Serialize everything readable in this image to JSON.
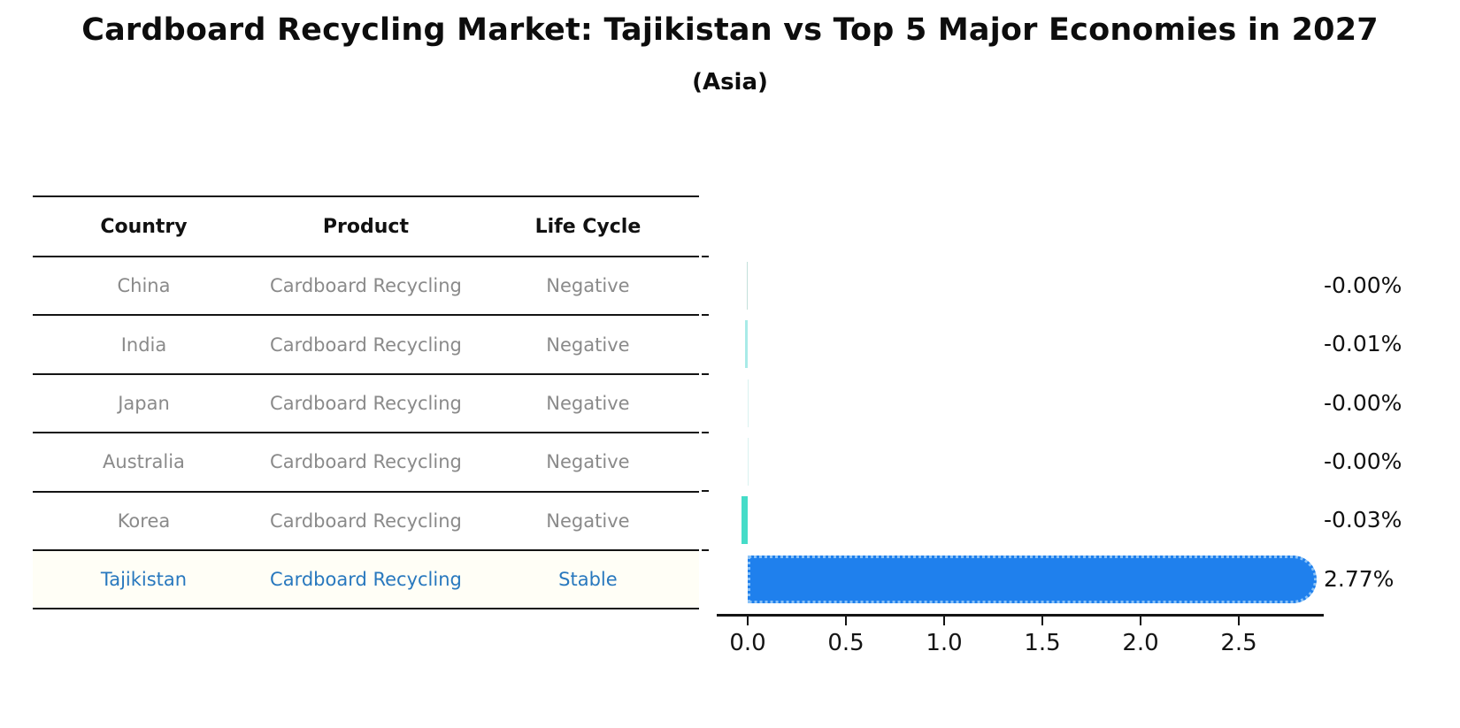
{
  "header": {
    "title": "Cardboard Recycling Market: Tajikistan vs Top 5 Major Economies in 2027",
    "subtitle": "(Asia)"
  },
  "table": {
    "columns": [
      "Country",
      "Product",
      "Life Cycle"
    ],
    "rows": [
      {
        "country": "China",
        "product": "Cardboard Recycling",
        "life_cycle": "Negative",
        "highlighted": false
      },
      {
        "country": "India",
        "product": "Cardboard Recycling",
        "life_cycle": "Negative",
        "highlighted": false
      },
      {
        "country": "Japan",
        "product": "Cardboard Recycling",
        "life_cycle": "Negative",
        "highlighted": false
      },
      {
        "country": "Australia",
        "product": "Cardboard Recycling",
        "life_cycle": "Negative",
        "highlighted": false
      },
      {
        "country": "Korea",
        "product": "Cardboard Recycling",
        "life_cycle": "Negative",
        "highlighted": false
      },
      {
        "country": "Tajikistan",
        "product": "Cardboard Recycling",
        "life_cycle": "Stable",
        "highlighted": true
      }
    ]
  },
  "chart_data": {
    "type": "bar",
    "orientation": "horizontal",
    "title": "",
    "xlabel": "",
    "ylabel": "",
    "categories": [
      "China",
      "India",
      "Japan",
      "Australia",
      "Korea",
      "Tajikistan"
    ],
    "values": [
      -0.004,
      -0.012,
      -0.001,
      -0.001,
      -0.031,
      2.77
    ],
    "value_labels": [
      "-0.00%",
      "-0.01%",
      "-0.00%",
      "-0.00%",
      "-0.03%",
      "2.77%"
    ],
    "bar_colors": [
      "#c3e0da",
      "#a9ebe8",
      "#d9f2f0",
      "#d9f2f0",
      "#45dcc8",
      "#1f80ed"
    ],
    "highlight_index": 5,
    "highlight_border_color": "#8ac2f7",
    "xticks": [
      0.0,
      0.5,
      1.0,
      1.5,
      2.0,
      2.5
    ],
    "xtick_labels": [
      "0.0",
      "0.5",
      "1.0",
      "1.5",
      "2.0",
      "2.5"
    ],
    "xlim": [
      -0.16,
      2.92
    ],
    "grid": false,
    "legend": false
  },
  "colors": {
    "highlight_text": "#2878be",
    "row_text": "#8a8a8a",
    "axis": "#141414",
    "bar_fill": "#1f80ed"
  }
}
